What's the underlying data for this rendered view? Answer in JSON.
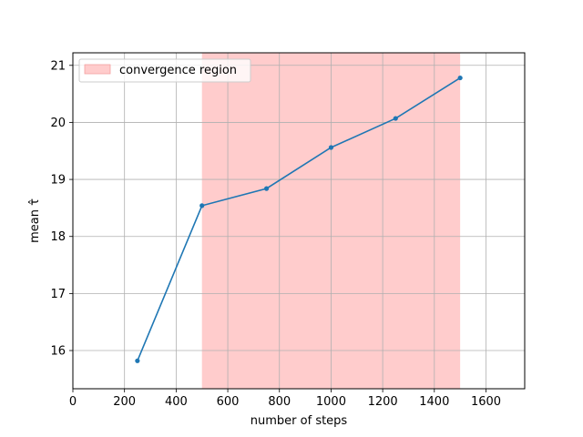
{
  "chart_data": {
    "type": "line",
    "xlabel": "number of steps",
    "ylabel": "mean τ̂",
    "xlim": [
      0,
      1750
    ],
    "ylim": [
      15.33,
      21.22
    ],
    "xticks": [
      0,
      200,
      400,
      600,
      800,
      1000,
      1200,
      1400,
      1600
    ],
    "yticks": [
      16,
      17,
      18,
      19,
      20,
      21
    ],
    "grid": true,
    "legend_position": "top-left",
    "shaded_region": {
      "label": "convergence region",
      "x_start": 500,
      "x_end": 1500,
      "color": "#ffcccc"
    },
    "series": [
      {
        "x": [
          250,
          500,
          750,
          1000,
          1250,
          1500
        ],
        "values": [
          15.82,
          18.54,
          18.84,
          19.56,
          20.07,
          20.78
        ],
        "color": "#1f77b4"
      }
    ]
  }
}
